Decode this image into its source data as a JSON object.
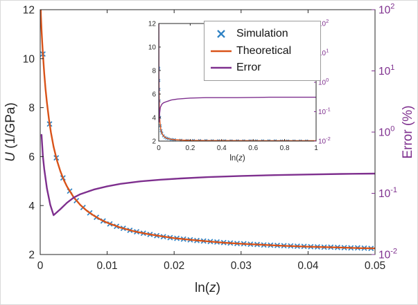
{
  "colors": {
    "simulation": "#2f82c4",
    "theoretical": "#D95319",
    "error": "#7E2F8E",
    "axis": "#262626",
    "legend_border": "#9a9a9a"
  },
  "chart_data": {
    "main": {
      "type": "line+scatter",
      "title": "",
      "xlabel": "ln(z)",
      "ylabel_left": "U (1/GPa)",
      "ylabel_right": "Error (%)",
      "xlim": [
        0,
        0.05
      ],
      "ylim_left": [
        2,
        12
      ],
      "ylim_right_log10": [
        -2,
        2
      ],
      "xticks": [
        0,
        0.01,
        0.02,
        0.03,
        0.04,
        0.05
      ],
      "yticks_left": [
        2,
        4,
        6,
        8,
        10,
        12
      ],
      "yticks_right_log10": [
        -2,
        -1,
        0,
        1,
        2
      ],
      "grid": false,
      "legend_position": "top-center-right",
      "series": [
        {
          "name": "Simulation",
          "type": "scatter",
          "marker": "x",
          "axis": "left",
          "color": "#2f82c4",
          "x": [
            0.0004,
            0.0014,
            0.0024,
            0.0034,
            0.0044,
            0.0054,
            0.0064,
            0.0074,
            0.0084,
            0.0094,
            0.0104,
            0.0114,
            0.0124,
            0.0134,
            0.0144,
            0.0154,
            0.0164,
            0.0174,
            0.0184,
            0.0194,
            0.0204,
            0.0214,
            0.0224,
            0.0234,
            0.0244,
            0.0254,
            0.0264,
            0.0274,
            0.0284,
            0.0294,
            0.0304,
            0.0314,
            0.0324,
            0.0334,
            0.0344,
            0.0354,
            0.0364,
            0.0374,
            0.0384,
            0.0394,
            0.0404,
            0.0414,
            0.0424,
            0.0434,
            0.0444,
            0.0454,
            0.0464,
            0.0474,
            0.0484,
            0.0494
          ],
          "y": [
            10.19,
            7.33,
            5.95,
            5.13,
            4.59,
            4.2,
            3.92,
            3.7,
            3.52,
            3.37,
            3.25,
            3.15,
            3.07,
            2.99,
            2.93,
            2.87,
            2.82,
            2.77,
            2.73,
            2.69,
            2.66,
            2.63,
            2.6,
            2.57,
            2.55,
            2.53,
            2.51,
            2.49,
            2.47,
            2.45,
            2.44,
            2.42,
            2.41,
            2.39,
            2.38,
            2.37,
            2.36,
            2.35,
            2.34,
            2.33,
            2.32,
            2.31,
            2.3,
            2.3,
            2.29,
            2.28,
            2.27,
            2.27,
            2.26,
            2.25
          ]
        },
        {
          "name": "Theoretical",
          "type": "line",
          "axis": "left",
          "color": "#D95319",
          "x": [
            5e-05,
            0.0001,
            0.0002,
            0.0003,
            0.0004,
            0.0006,
            0.0008,
            0.001,
            0.0013,
            0.0016,
            0.002,
            0.0025,
            0.003,
            0.0035,
            0.004,
            0.005,
            0.006,
            0.007,
            0.008,
            0.009,
            0.01,
            0.012,
            0.014,
            0.016,
            0.018,
            0.02,
            0.0225,
            0.025,
            0.0275,
            0.03,
            0.033,
            0.036,
            0.04,
            0.044,
            0.048,
            0.05
          ],
          "y": [
            12.4,
            11.76,
            11.18,
            10.66,
            10.19,
            9.4,
            8.75,
            8.2,
            7.53,
            6.98,
            6.4,
            5.84,
            5.41,
            5.06,
            4.78,
            4.34,
            4.02,
            3.78,
            3.59,
            3.43,
            3.3,
            3.1,
            2.95,
            2.84,
            2.75,
            2.67,
            2.6,
            2.54,
            2.48,
            2.44,
            2.4,
            2.36,
            2.32,
            2.29,
            2.26,
            2.25
          ]
        },
        {
          "name": "Error",
          "type": "line",
          "axis": "right",
          "color": "#7E2F8E",
          "x": [
            0.0002,
            0.0004,
            0.0006,
            0.001,
            0.0015,
            0.002,
            0.003,
            0.004,
            0.005,
            0.006,
            0.008,
            0.01,
            0.012,
            0.015,
            0.018,
            0.021,
            0.025,
            0.03,
            0.035,
            0.04,
            0.045,
            0.05
          ],
          "y": [
            0.9,
            0.4,
            0.25,
            0.12,
            0.065,
            0.044,
            0.055,
            0.07,
            0.085,
            0.097,
            0.115,
            0.13,
            0.143,
            0.157,
            0.167,
            0.175,
            0.184,
            0.192,
            0.198,
            0.203,
            0.207,
            0.21
          ]
        }
      ]
    },
    "inset": {
      "type": "line+scatter",
      "title": "",
      "xlabel": "ln(z)",
      "ylabel_left": "",
      "ylabel_right": "",
      "xlim": [
        0,
        1
      ],
      "ylim_left": [
        2,
        12
      ],
      "ylim_right_log10": [
        -2,
        2
      ],
      "xticks": [
        0,
        0.2,
        0.4,
        0.6,
        0.8,
        1
      ],
      "yticks_left": [
        2,
        4,
        6,
        8,
        10,
        12
      ],
      "yticks_right_log10": [
        -2,
        -1,
        0,
        1,
        2
      ],
      "grid": false,
      "series": [
        {
          "name": "Simulation",
          "type": "scatter",
          "marker": "x",
          "axis": "left",
          "color": "#2f82c4",
          "x": [
            0.001,
            0.0015,
            0.002,
            0.003,
            0.006,
            0.01,
            0.015,
            0.02,
            0.03,
            0.04,
            0.05,
            0.06,
            0.08,
            0.1,
            0.14,
            0.18,
            0.22,
            0.26,
            0.3,
            0.34,
            0.38,
            0.42,
            0.46,
            0.5,
            0.54,
            0.58,
            0.62,
            0.66,
            0.7,
            0.74,
            0.78,
            0.82,
            0.86,
            0.9,
            0.94
          ],
          "y": [
            8.2,
            7.15,
            6.4,
            5.41,
            4.02,
            3.3,
            2.89,
            2.67,
            2.44,
            2.32,
            2.25,
            2.2,
            2.14,
            2.12,
            2.08,
            2.06,
            2.06,
            2.05,
            2.05,
            2.04,
            2.04,
            2.04,
            2.03,
            2.03,
            2.03,
            2.03,
            2.03,
            2.03,
            2.03,
            2.03,
            2.02,
            2.02,
            2.02,
            2.02,
            2.02
          ]
        },
        {
          "name": "Theoretical",
          "type": "line",
          "axis": "left",
          "color": "#D95319",
          "x": [
            0.0002,
            0.0005,
            0.001,
            0.002,
            0.004,
            0.006,
            0.008,
            0.012,
            0.016,
            0.02,
            0.03,
            0.04,
            0.05,
            0.07,
            0.1,
            0.15,
            0.2,
            0.3,
            0.5,
            0.7,
            1.0
          ],
          "y": [
            12.2,
            9.8,
            8.2,
            6.4,
            4.78,
            4.02,
            3.59,
            3.1,
            2.84,
            2.67,
            2.44,
            2.32,
            2.25,
            2.17,
            2.12,
            2.08,
            2.06,
            2.05,
            2.04,
            2.03,
            2.03
          ]
        },
        {
          "name": "Error",
          "type": "line",
          "axis": "right",
          "color": "#7E2F8E",
          "x": [
            0.0003,
            0.001,
            0.002,
            0.003,
            0.005,
            0.01,
            0.02,
            0.03,
            0.05,
            0.08,
            0.12,
            0.2,
            0.3,
            0.5,
            0.7,
            1.0
          ],
          "y": [
            100,
            0.5,
            0.06,
            0.045,
            0.08,
            0.14,
            0.18,
            0.2,
            0.22,
            0.25,
            0.27,
            0.29,
            0.3,
            0.3,
            0.31,
            0.31
          ]
        }
      ]
    }
  }
}
